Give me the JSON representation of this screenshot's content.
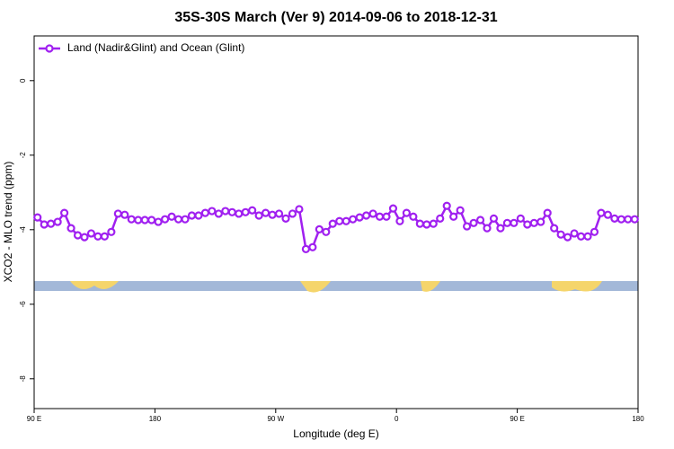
{
  "chart_data": {
    "type": "line",
    "title": "35S-30S March (Ver 9)   2014-09-06 to 2018-12-31",
    "x_label": "Longitude (deg E)",
    "y_label": "XCO2 - MLO trend (ppm)",
    "legend": "top-left",
    "xlim": [
      90,
      540
    ],
    "xticks": [
      {
        "value": 90,
        "label": "90 E"
      },
      180,
      {
        "value": 270,
        "label": "90 W"
      },
      {
        "value": 360,
        "label": "0"
      },
      {
        "value": 450,
        "label": "90 E"
      },
      {
        "value": 540,
        "label": "180"
      }
    ],
    "ylim": [
      -8.8,
      1.2
    ],
    "yticks": [
      0,
      -2,
      -4,
      -6,
      -8
    ],
    "x": [
      92.5,
      97.5,
      102.5,
      107.5,
      112.5,
      117.5,
      122.5,
      127.5,
      132.5,
      137.5,
      142.5,
      147.5,
      152.5,
      157.5,
      162.5,
      167.5,
      172.5,
      177.5,
      182.5,
      187.5,
      192.5,
      197.5,
      202.5,
      207.5,
      212.5,
      217.5,
      222.5,
      227.5,
      232.5,
      237.5,
      242.5,
      247.5,
      252.5,
      257.5,
      262.5,
      267.5,
      272.5,
      277.5,
      282.5,
      287.5,
      292.5,
      297.5,
      302.5,
      307.5,
      312.5,
      317.5,
      322.5,
      327.5,
      332.5,
      337.5,
      342.5,
      347.5,
      352.5,
      357.5,
      362.5,
      367.5,
      372.5,
      377.5,
      382.5,
      387.5,
      392.5,
      397.5,
      402.5,
      407.5,
      412.5,
      417.5,
      422.5,
      427.5,
      432.5,
      437.5,
      442.5,
      447.5,
      452.5,
      457.5,
      462.5,
      467.5,
      472.5,
      477.5,
      482.5,
      487.5,
      492.5,
      497.5,
      502.5,
      507.5,
      512.5,
      517.5,
      522.5,
      527.5,
      532.5,
      537.5
    ],
    "series": [
      {
        "name": "Land (Nadir&Glint) and Ocean (Glint)",
        "color": "#a020f0",
        "values": [
          -3.67,
          -3.86,
          -3.84,
          -3.79,
          -3.55,
          -3.96,
          -4.15,
          -4.2,
          -4.1,
          -4.18,
          -4.18,
          -4.06,
          -3.57,
          -3.6,
          -3.72,
          -3.74,
          -3.74,
          -3.74,
          -3.79,
          -3.72,
          -3.65,
          -3.72,
          -3.72,
          -3.62,
          -3.62,
          -3.55,
          -3.5,
          -3.57,
          -3.5,
          -3.53,
          -3.57,
          -3.53,
          -3.48,
          -3.62,
          -3.55,
          -3.6,
          -3.57,
          -3.7,
          -3.57,
          -3.45,
          -4.52,
          -4.47,
          -3.99,
          -4.06,
          -3.84,
          -3.77,
          -3.77,
          -3.72,
          -3.67,
          -3.62,
          -3.57,
          -3.65,
          -3.65,
          -3.43,
          -3.77,
          -3.55,
          -3.65,
          -3.84,
          -3.86,
          -3.84,
          -3.7,
          -3.36,
          -3.65,
          -3.48,
          -3.91,
          -3.82,
          -3.74,
          -3.96,
          -3.7,
          -3.96,
          -3.82,
          -3.82,
          -3.7,
          -3.86,
          -3.82,
          -3.79,
          -3.55,
          -3.96,
          -4.13,
          -4.2,
          -4.1,
          -4.18,
          -4.18,
          -4.06,
          -3.55,
          -3.6,
          -3.7,
          -3.72,
          -3.72,
          -3.72
        ]
      }
    ]
  }
}
